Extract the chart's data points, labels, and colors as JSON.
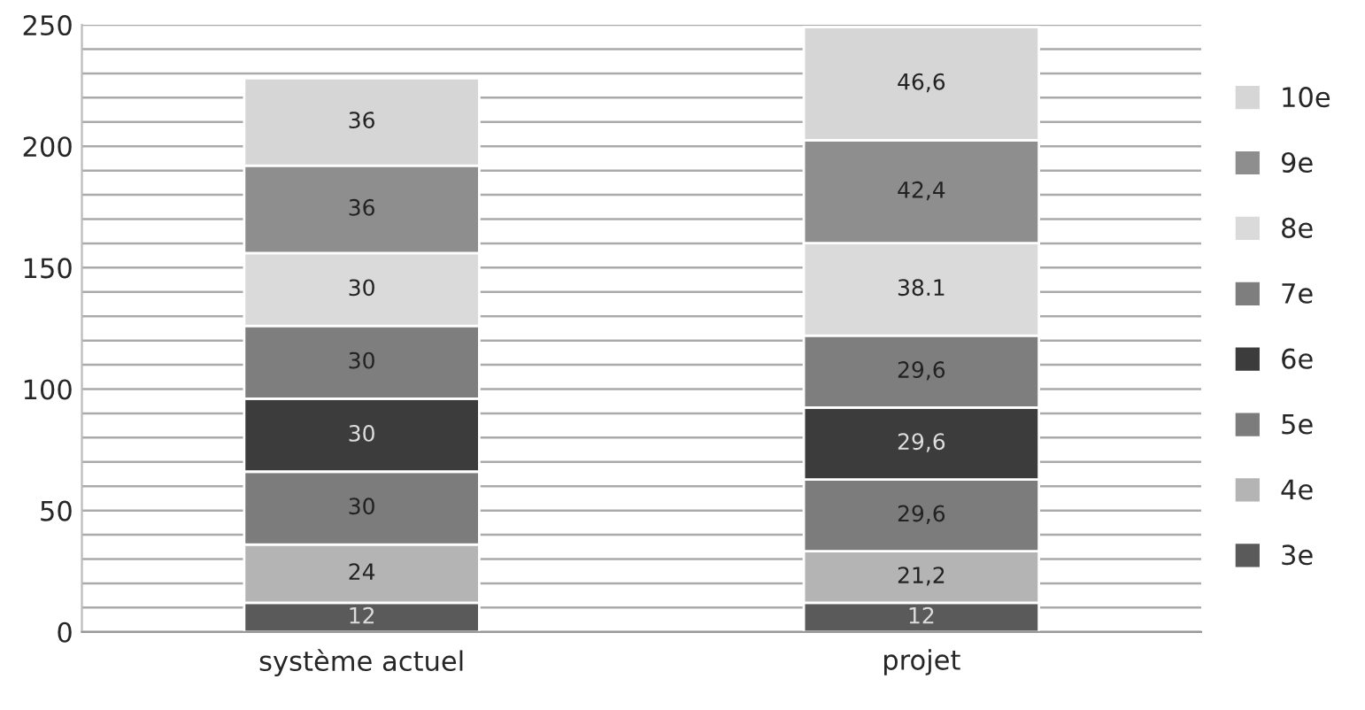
{
  "chart_data": {
    "type": "bar",
    "stacked": true,
    "categories": [
      "système actuel",
      "projet"
    ],
    "series": [
      {
        "name": "3e",
        "color": "#5a5a5a",
        "values": [
          12,
          12
        ],
        "value_labels": [
          "12",
          "12"
        ]
      },
      {
        "name": "4e",
        "color": "#b4b4b4",
        "values": [
          24,
          21.2
        ],
        "value_labels": [
          "24",
          "21,2"
        ]
      },
      {
        "name": "5e",
        "color": "#7c7c7c",
        "values": [
          30,
          29.6
        ],
        "value_labels": [
          "30",
          "29,6"
        ]
      },
      {
        "name": "6e",
        "color": "#3c3c3c",
        "values": [
          30,
          29.6
        ],
        "value_labels": [
          "30",
          "29,6"
        ]
      },
      {
        "name": "7e",
        "color": "#7e7e7e",
        "values": [
          30,
          29.6
        ],
        "value_labels": [
          "30",
          "29,6"
        ]
      },
      {
        "name": "8e",
        "color": "#dadada",
        "values": [
          30,
          38.1
        ],
        "value_labels": [
          "30",
          "38.1"
        ]
      },
      {
        "name": "9e",
        "color": "#8e8e8e",
        "values": [
          36,
          42.4
        ],
        "value_labels": [
          "36",
          "42,4"
        ]
      },
      {
        "name": "10e",
        "color": "#d6d6d6",
        "values": [
          36,
          46.6
        ],
        "value_labels": [
          "36",
          "46,6"
        ]
      }
    ],
    "ylim": [
      0,
      250
    ],
    "yticks": [
      0,
      {
        "value": 10,
        "label": null
      },
      {
        "value": 20,
        "label": null
      },
      {
        "value": 30,
        "label": null
      },
      {
        "value": 40,
        "label": null
      },
      50,
      {
        "value": 60,
        "label": null
      },
      {
        "value": 70,
        "label": null
      },
      {
        "value": 80,
        "label": null
      },
      {
        "value": 90,
        "label": null
      },
      100,
      {
        "value": 110,
        "label": null
      },
      {
        "value": 120,
        "label": null
      },
      {
        "value": 130,
        "label": null
      },
      {
        "value": 140,
        "label": null
      },
      150,
      {
        "value": 160,
        "label": null
      },
      {
        "value": 170,
        "label": null
      },
      {
        "value": 180,
        "label": null
      },
      {
        "value": 190,
        "label": null
      },
      200,
      {
        "value": 210,
        "label": null
      },
      {
        "value": 220,
        "label": null
      },
      {
        "value": 230,
        "label": null
      },
      {
        "value": 240,
        "label": null
      },
      250
    ],
    "grid": "y",
    "legend": "right"
  }
}
